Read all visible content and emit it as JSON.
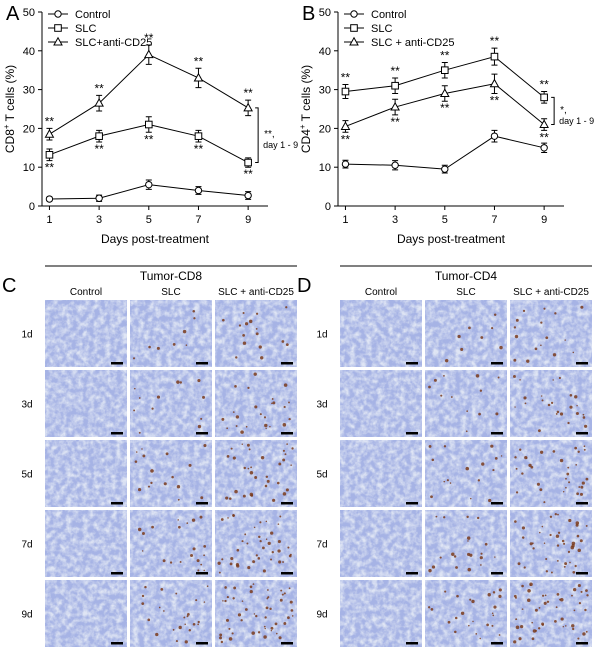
{
  "chart_data": [
    {
      "type": "line",
      "panel": "A",
      "xlabel": "Days post-treatment",
      "ylabel": {
        "text": "CD8",
        "sup": "+",
        "rest": " T cells (%)"
      },
      "x": [
        1,
        3,
        5,
        7,
        9
      ],
      "xlim": [
        0.7,
        9.8
      ],
      "xticks": [
        1,
        3,
        5,
        7,
        9
      ],
      "ylim": [
        0,
        50
      ],
      "yticks": [
        0,
        10,
        20,
        30,
        40,
        50
      ],
      "legend": "upper left",
      "series": [
        {
          "name": "Control",
          "color": "#000000",
          "marker": "circle",
          "values": [
            1.8,
            2.0,
            5.5,
            4.0,
            2.7
          ],
          "errors": [
            0.5,
            0.8,
            1.2,
            1.0,
            1.0
          ]
        },
        {
          "name": "SLC",
          "color": "#000000",
          "marker": "square",
          "values": [
            13.2,
            18.0,
            21.0,
            18.0,
            11.2
          ],
          "errors": [
            1.5,
            1.5,
            2.0,
            1.5,
            1.2
          ],
          "sig": "**",
          "sig_position": "below"
        },
        {
          "name": "SLC+anti-CD25",
          "color": "#000000",
          "marker": "triangle",
          "values": [
            18.5,
            26.5,
            39.0,
            33.0,
            25.3
          ],
          "errors": [
            1.5,
            2.0,
            2.5,
            2.5,
            2.0
          ],
          "sig": "**",
          "sig_position": "above"
        }
      ],
      "bracket": {
        "label": "**,",
        "sub": "day 1 - 9"
      }
    },
    {
      "type": "line",
      "panel": "B",
      "xlabel": "Days post-treatment",
      "ylabel": {
        "text": "CD4",
        "sup": "+",
        "rest": " T cells (%)"
      },
      "x": [
        1,
        3,
        5,
        7,
        9
      ],
      "xlim": [
        0.7,
        9.8
      ],
      "xticks": [
        1,
        3,
        5,
        7,
        9
      ],
      "ylim": [
        0,
        50
      ],
      "yticks": [
        0,
        10,
        20,
        30,
        40,
        50
      ],
      "legend": "upper left",
      "series": [
        {
          "name": "Control",
          "color": "#000000",
          "marker": "circle",
          "values": [
            10.8,
            10.5,
            9.5,
            18.0,
            15.0
          ],
          "errors": [
            1.0,
            1.2,
            1.0,
            1.5,
            1.2
          ]
        },
        {
          "name": "SLC",
          "color": "#000000",
          "marker": "square",
          "values": [
            29.5,
            31.0,
            35.0,
            38.5,
            28.0
          ],
          "errors": [
            1.8,
            2.0,
            2.0,
            2.2,
            1.5
          ],
          "sig": "**",
          "sig_position": "above"
        },
        {
          "name": "SLC + anti-CD25",
          "color": "#000000",
          "marker": "triangle",
          "values": [
            20.5,
            25.5,
            29.0,
            31.5,
            21.0
          ],
          "errors": [
            1.5,
            2.0,
            2.0,
            2.5,
            1.5
          ],
          "sig": "**",
          "sig_position": "below"
        }
      ],
      "bracket": {
        "label": "*,",
        "sub": "day 1 - 9"
      }
    }
  ],
  "image_panels": [
    {
      "panel": "C",
      "title": "Tumor-CD8",
      "columns": [
        "Control",
        "SLC",
        "SLC + anti-CD25"
      ],
      "rows": [
        "1d",
        "3d",
        "5d",
        "7d",
        "9d"
      ]
    },
    {
      "panel": "D",
      "title": "Tumor-CD4",
      "columns": [
        "Control",
        "SLC",
        "SLC + anti-CD25"
      ],
      "rows": [
        "1d",
        "3d",
        "5d",
        "7d",
        "9d"
      ]
    }
  ]
}
